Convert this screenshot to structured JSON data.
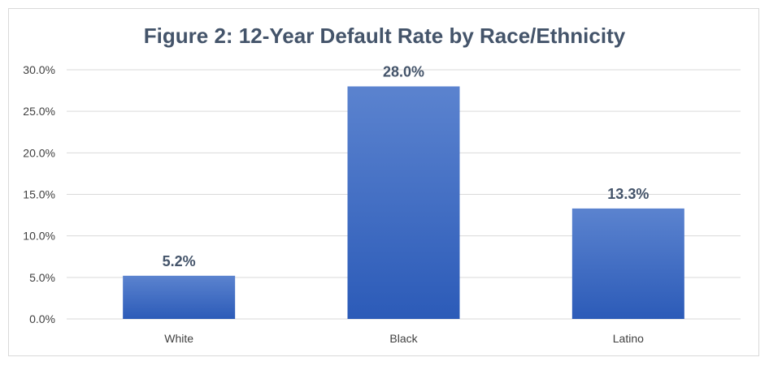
{
  "chart_data": {
    "type": "bar",
    "title": "Figure 2: 12-Year Default Rate by Race/Ethnicity",
    "xlabel": "",
    "ylabel": "",
    "categories": [
      "White",
      "Black",
      "Latino"
    ],
    "values": [
      5.2,
      28.0,
      13.3
    ],
    "data_labels": [
      "5.2%",
      "28.0%",
      "13.3%"
    ],
    "ylim": [
      0,
      30
    ],
    "y_ticks": [
      0,
      5,
      10,
      15,
      20,
      25,
      30
    ],
    "y_tick_labels": [
      "0.0%",
      "5.0%",
      "10.0%",
      "15.0%",
      "20.0%",
      "25.0%",
      "30.0%"
    ],
    "grid": true,
    "legend": "none",
    "colors": {
      "bar_top": "#5b83cf",
      "bar_bottom": "#2c5bb8",
      "title": "#44546a",
      "grid": "#d9d9d9"
    }
  }
}
